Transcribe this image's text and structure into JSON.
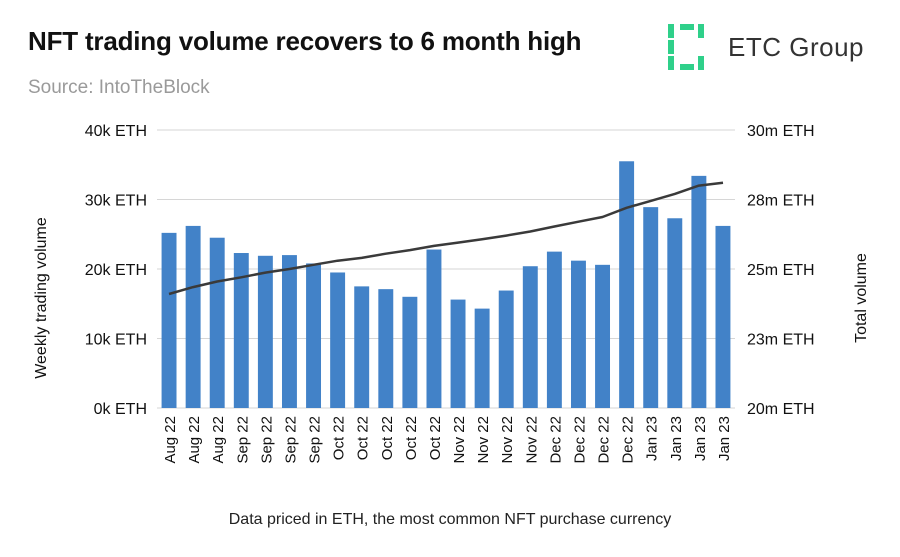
{
  "header": {
    "title": "NFT trading volume recovers to 6 month high",
    "source": "Source: IntoTheBlock",
    "logo_text": "ETC Group",
    "logo_color": "#2fd08a"
  },
  "footer": {
    "caption": "Data priced in ETH, the most common NFT purchase currency"
  },
  "colors": {
    "bar": "#4282c8",
    "line": "#3a3a3a",
    "grid": "#d6d6d6"
  },
  "chart_data": {
    "type": "bar",
    "title": "NFT trading volume recovers to 6 month high",
    "categories": [
      "Aug 22",
      "Aug 22",
      "Aug 22",
      "Sep 22",
      "Sep 22",
      "Sep 22",
      "Sep 22",
      "Oct 22",
      "Oct 22",
      "Oct 22",
      "Oct 22",
      "Oct 22",
      "Nov 22",
      "Nov 22",
      "Nov 22",
      "Nov 22",
      "Dec 22",
      "Dec 22",
      "Dec 22",
      "Dec 22",
      "Jan 23",
      "Jan 23",
      "Jan 23",
      "Jan 23"
    ],
    "left_axis": {
      "label": "Weekly trading volume",
      "ylim": [
        0,
        40000
      ],
      "ticks": [
        0,
        10000,
        20000,
        30000,
        40000
      ],
      "tick_labels": [
        "0k ETH",
        "10k ETH",
        "20k ETH",
        "30k ETH",
        "40k ETH"
      ]
    },
    "right_axis": {
      "label": "Total volume",
      "ylim": [
        20000000,
        30000000
      ],
      "ticks": [
        20000000,
        22500000,
        25000000,
        27500000,
        30000000
      ],
      "tick_labels": [
        "20m ETH",
        "23m ETH",
        "25m ETH",
        "28m ETH",
        "30m ETH"
      ]
    },
    "series": [
      {
        "name": "Weekly trading volume",
        "type": "bar",
        "axis": "left",
        "values": [
          25200,
          26200,
          24500,
          22300,
          21900,
          22000,
          20800,
          19500,
          17500,
          17100,
          16000,
          22800,
          15600,
          14300,
          16900,
          20400,
          22500,
          21200,
          20600,
          35500,
          28900,
          27300,
          33400,
          26200
        ]
      },
      {
        "name": "Total volume",
        "type": "line",
        "axis": "right",
        "values": [
          24100000,
          24350000,
          24550000,
          24700000,
          24870000,
          25000000,
          25150000,
          25300000,
          25400000,
          25550000,
          25680000,
          25830000,
          25950000,
          26070000,
          26200000,
          26350000,
          26530000,
          26700000,
          26870000,
          27200000,
          27450000,
          27700000,
          28000000,
          28100000
        ]
      }
    ],
    "grid": true,
    "xlabel": "Data priced in ETH, the most common NFT purchase currency"
  }
}
